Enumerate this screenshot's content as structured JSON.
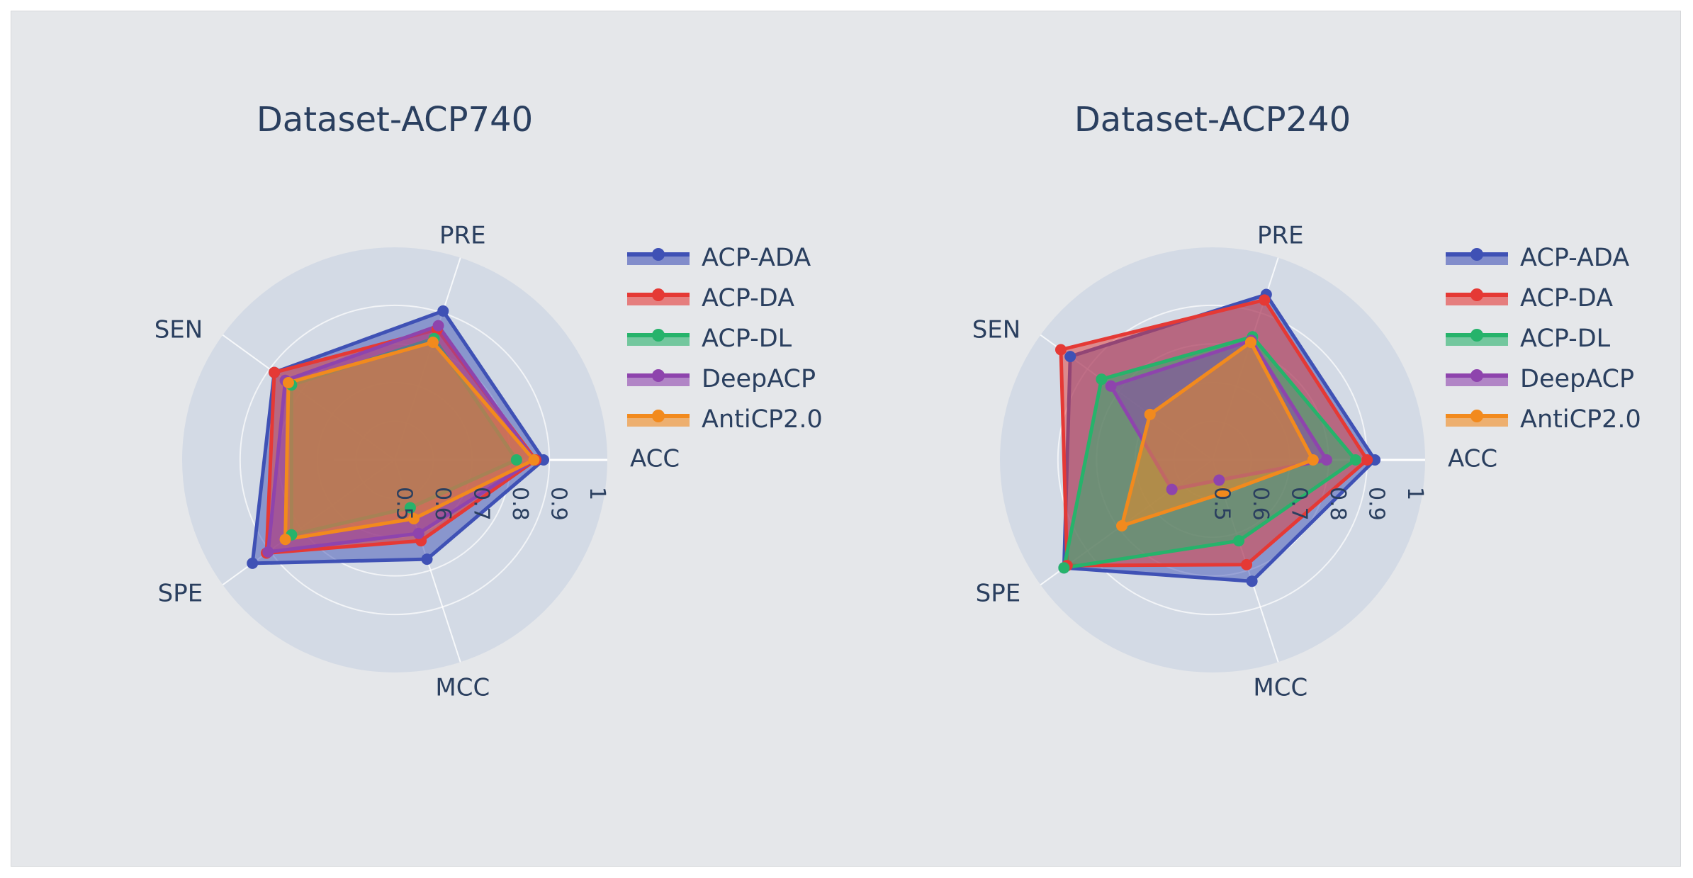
{
  "chart_data": [
    {
      "type": "radar",
      "title": "Dataset-ACP740",
      "axes": [
        "ACC",
        "PRE",
        "SEN",
        "SPE",
        "MCC"
      ],
      "radial_range": [
        0.5,
        1
      ],
      "radial_ticks": [
        "0.5",
        "0.6",
        "0.7",
        "0.8",
        "0.9",
        "1"
      ],
      "legend_position": "right",
      "series": [
        {
          "name": "ACP-ADA",
          "color": "#3f51b5",
          "values": [
            0.885,
            0.905,
            0.885,
            0.955,
            0.77
          ]
        },
        {
          "name": "ACP-DA",
          "color": "#e53935",
          "values": [
            0.865,
            0.855,
            0.885,
            0.91,
            0.72
          ]
        },
        {
          "name": "ACP-DL",
          "color": "#26b36b",
          "values": [
            0.815,
            0.83,
            0.83,
            0.83,
            0.63
          ]
        },
        {
          "name": "DeepACP",
          "color": "#8e44ad",
          "values": [
            0.86,
            0.865,
            0.85,
            0.905,
            0.7
          ]
        },
        {
          "name": "AntiCP2.0",
          "color": "#f28a1d",
          "values": [
            0.86,
            0.82,
            0.84,
            0.85,
            0.66
          ]
        }
      ]
    },
    {
      "type": "radar",
      "title": "Dataset-ACP240",
      "axes": [
        "ACC",
        "PRE",
        "SEN",
        "SPE",
        "MCC"
      ],
      "radial_range": [
        0.5,
        1
      ],
      "radial_ticks": [
        "0.5",
        "0.6",
        "0.7",
        "0.8",
        "0.9",
        "1"
      ],
      "legend_position": "right",
      "series": [
        {
          "name": "ACP-ADA",
          "color": "#3f51b5",
          "values": [
            0.92,
            0.95,
            0.955,
            0.975,
            0.83
          ]
        },
        {
          "name": "ACP-DA",
          "color": "#e53935",
          "values": [
            0.9,
            0.935,
            0.985,
            0.965,
            0.785
          ]
        },
        {
          "name": "ACP-DL",
          "color": "#26b36b",
          "values": [
            0.87,
            0.835,
            0.855,
            0.975,
            0.72
          ]
        },
        {
          "name": "DeepACP",
          "color": "#8e44ad",
          "values": [
            0.795,
            0.825,
            0.825,
            0.63,
            0.555
          ]
        },
        {
          "name": "AntiCP2.0",
          "color": "#f28a1d",
          "values": [
            0.76,
            0.82,
            0.7,
            0.79,
            0.59
          ]
        }
      ]
    }
  ]
}
